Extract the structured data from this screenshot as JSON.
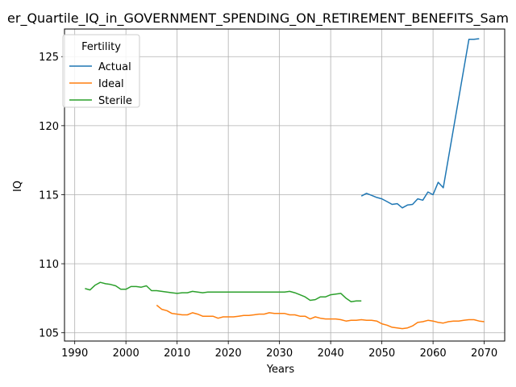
{
  "chart_data": {
    "type": "line",
    "title": "er_Quartile_IQ_in_GOVERNMENT_SPENDING_ON_RETIREMENT_BENEFITS_Sam",
    "xlabel": "Years",
    "ylabel": "IQ",
    "xlim": [
      1988,
      2074
    ],
    "ylim": [
      104.4,
      127.0
    ],
    "xticks": [
      1990,
      2000,
      2010,
      2020,
      2030,
      2040,
      2050,
      2060,
      2070
    ],
    "yticks": [
      105,
      110,
      115,
      120,
      125
    ],
    "grid": true,
    "legend": {
      "title": "Fertility",
      "placement": "upper-left"
    },
    "series": [
      {
        "name": "Actual",
        "color": "#1f77b4",
        "points": [
          [
            2046,
            114.9
          ],
          [
            2047,
            115.1
          ],
          [
            2048,
            114.95
          ],
          [
            2049,
            114.8
          ],
          [
            2050,
            114.7
          ],
          [
            2051,
            114.5
          ],
          [
            2052,
            114.3
          ],
          [
            2053,
            114.35
          ],
          [
            2054,
            114.05
          ],
          [
            2055,
            114.25
          ],
          [
            2056,
            114.3
          ],
          [
            2057,
            114.7
          ],
          [
            2058,
            114.6
          ],
          [
            2059,
            115.2
          ],
          [
            2060,
            115.0
          ],
          [
            2061,
            115.9
          ],
          [
            2062,
            115.5
          ],
          [
            2067,
            126.25
          ],
          [
            2068,
            126.25
          ],
          [
            2069,
            126.3
          ]
        ]
      },
      {
        "name": "Ideal",
        "color": "#ff7f0e",
        "points": [
          [
            2006,
            107.0
          ],
          [
            2007,
            106.7
          ],
          [
            2008,
            106.6
          ],
          [
            2009,
            106.4
          ],
          [
            2010,
            106.35
          ],
          [
            2011,
            106.3
          ],
          [
            2012,
            106.3
          ],
          [
            2013,
            106.45
          ],
          [
            2014,
            106.35
          ],
          [
            2015,
            106.2
          ],
          [
            2016,
            106.2
          ],
          [
            2017,
            106.2
          ],
          [
            2018,
            106.05
          ],
          [
            2019,
            106.15
          ],
          [
            2020,
            106.15
          ],
          [
            2021,
            106.15
          ],
          [
            2022,
            106.2
          ],
          [
            2023,
            106.25
          ],
          [
            2024,
            106.25
          ],
          [
            2025,
            106.3
          ],
          [
            2026,
            106.35
          ],
          [
            2027,
            106.35
          ],
          [
            2028,
            106.45
          ],
          [
            2029,
            106.4
          ],
          [
            2030,
            106.4
          ],
          [
            2031,
            106.4
          ],
          [
            2032,
            106.3
          ],
          [
            2033,
            106.3
          ],
          [
            2034,
            106.2
          ],
          [
            2035,
            106.2
          ],
          [
            2036,
            106.0
          ],
          [
            2037,
            106.15
          ],
          [
            2038,
            106.05
          ],
          [
            2039,
            106.0
          ],
          [
            2040,
            106.0
          ],
          [
            2041,
            106.0
          ],
          [
            2042,
            105.95
          ],
          [
            2043,
            105.85
          ],
          [
            2044,
            105.9
          ],
          [
            2045,
            105.9
          ],
          [
            2046,
            105.95
          ],
          [
            2047,
            105.9
          ],
          [
            2048,
            105.9
          ],
          [
            2049,
            105.85
          ],
          [
            2050,
            105.65
          ],
          [
            2051,
            105.55
          ],
          [
            2052,
            105.4
          ],
          [
            2053,
            105.35
          ],
          [
            2054,
            105.3
          ],
          [
            2055,
            105.35
          ],
          [
            2056,
            105.5
          ],
          [
            2057,
            105.75
          ],
          [
            2058,
            105.8
          ],
          [
            2059,
            105.9
          ],
          [
            2060,
            105.85
          ],
          [
            2061,
            105.75
          ],
          [
            2062,
            105.7
          ],
          [
            2063,
            105.8
          ],
          [
            2064,
            105.85
          ],
          [
            2065,
            105.85
          ],
          [
            2066,
            105.9
          ],
          [
            2067,
            105.95
          ],
          [
            2068,
            105.95
          ],
          [
            2069,
            105.85
          ],
          [
            2070,
            105.8
          ]
        ]
      },
      {
        "name": "Sterile",
        "color": "#2ca02c",
        "points": [
          [
            1992,
            108.2
          ],
          [
            1993,
            108.1
          ],
          [
            1994,
            108.45
          ],
          [
            1995,
            108.65
          ],
          [
            1996,
            108.55
          ],
          [
            1997,
            108.5
          ],
          [
            1998,
            108.4
          ],
          [
            1999,
            108.15
          ],
          [
            2000,
            108.15
          ],
          [
            2001,
            108.35
          ],
          [
            2002,
            108.35
          ],
          [
            2003,
            108.3
          ],
          [
            2004,
            108.4
          ],
          [
            2005,
            108.05
          ],
          [
            2006,
            108.05
          ],
          [
            2007,
            108.0
          ],
          [
            2008,
            107.95
          ],
          [
            2009,
            107.9
          ],
          [
            2010,
            107.85
          ],
          [
            2011,
            107.9
          ],
          [
            2012,
            107.9
          ],
          [
            2013,
            108.0
          ],
          [
            2014,
            107.95
          ],
          [
            2015,
            107.9
          ],
          [
            2016,
            107.95
          ],
          [
            2017,
            107.95
          ],
          [
            2018,
            107.95
          ],
          [
            2019,
            107.95
          ],
          [
            2020,
            107.95
          ],
          [
            2021,
            107.95
          ],
          [
            2022,
            107.95
          ],
          [
            2023,
            107.95
          ],
          [
            2024,
            107.95
          ],
          [
            2025,
            107.95
          ],
          [
            2026,
            107.95
          ],
          [
            2027,
            107.95
          ],
          [
            2028,
            107.95
          ],
          [
            2029,
            107.95
          ],
          [
            2030,
            107.95
          ],
          [
            2031,
            107.95
          ],
          [
            2032,
            108.0
          ],
          [
            2033,
            107.9
          ],
          [
            2034,
            107.75
          ],
          [
            2035,
            107.6
          ],
          [
            2036,
            107.35
          ],
          [
            2037,
            107.4
          ],
          [
            2038,
            107.6
          ],
          [
            2039,
            107.6
          ],
          [
            2040,
            107.75
          ],
          [
            2041,
            107.8
          ],
          [
            2042,
            107.85
          ],
          [
            2043,
            107.5
          ],
          [
            2044,
            107.25
          ],
          [
            2045,
            107.3
          ],
          [
            2046,
            107.3
          ]
        ]
      }
    ]
  }
}
